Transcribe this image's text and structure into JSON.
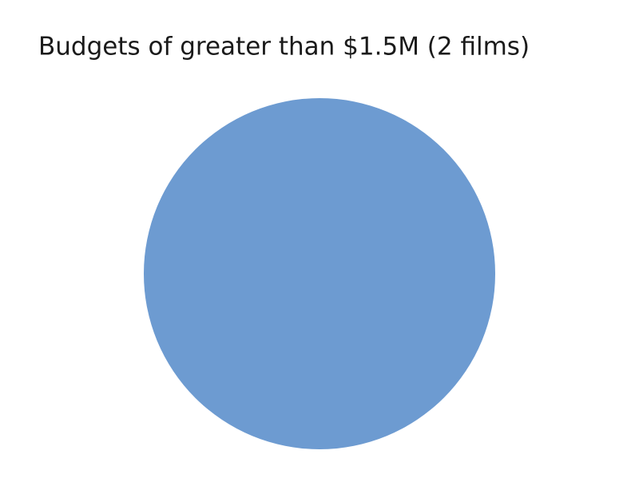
{
  "chart_data": {
    "type": "pie",
    "title": "Budgets of greater than $1.5M (2 films)",
    "categories": [
      null
    ],
    "values": [
      100
    ],
    "colors": [
      "#6d9bd1"
    ]
  }
}
